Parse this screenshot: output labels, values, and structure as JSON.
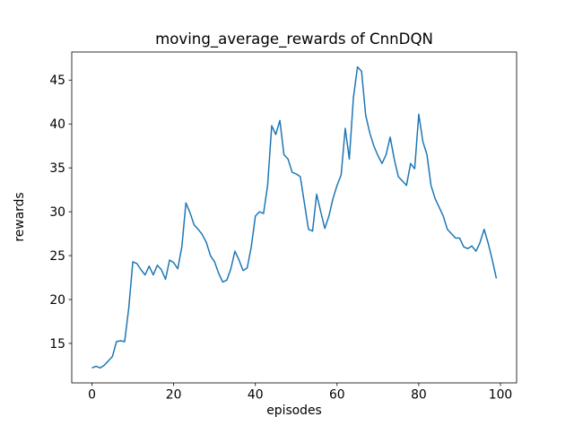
{
  "chart_data": {
    "type": "line",
    "title": "moving_average_rewards of CnnDQN",
    "xlabel": "episodes",
    "ylabel": "rewards",
    "line_color": "#1f77b4",
    "background_color": "#ffffff",
    "grid": false,
    "legend": "none",
    "xlim": [
      -4.95,
      103.95
    ],
    "ylim": [
      10.5,
      48.2
    ],
    "x_ticks": [
      0,
      20,
      40,
      60,
      80,
      100
    ],
    "y_ticks": [
      15,
      20,
      25,
      30,
      35,
      40,
      45
    ],
    "x": [
      0,
      1,
      2,
      3,
      4,
      5,
      6,
      7,
      8,
      9,
      10,
      11,
      12,
      13,
      14,
      15,
      16,
      17,
      18,
      19,
      20,
      21,
      22,
      23,
      24,
      25,
      26,
      27,
      28,
      29,
      30,
      31,
      32,
      33,
      34,
      35,
      36,
      37,
      38,
      39,
      40,
      41,
      42,
      43,
      44,
      45,
      46,
      47,
      48,
      49,
      50,
      51,
      52,
      53,
      54,
      55,
      56,
      57,
      58,
      59,
      60,
      61,
      62,
      63,
      64,
      65,
      66,
      67,
      68,
      69,
      70,
      71,
      72,
      73,
      74,
      75,
      76,
      77,
      78,
      79,
      80,
      81,
      82,
      83,
      84,
      85,
      86,
      87,
      88,
      89,
      90,
      91,
      92,
      93,
      94,
      95,
      96,
      97,
      98,
      99
    ],
    "values": [
      12.2,
      12.4,
      12.2,
      12.5,
      13.0,
      13.5,
      15.2,
      15.3,
      15.2,
      19.0,
      24.3,
      24.1,
      23.4,
      22.8,
      23.8,
      22.8,
      23.9,
      23.4,
      22.3,
      24.5,
      24.2,
      23.5,
      26.0,
      31.0,
      29.9,
      28.5,
      28.0,
      27.4,
      26.5,
      25.0,
      24.3,
      23.0,
      22.0,
      22.2,
      23.5,
      25.5,
      24.5,
      23.3,
      23.6,
      26.0,
      29.5,
      30.0,
      29.8,
      33.0,
      39.8,
      38.8,
      40.4,
      36.5,
      36.0,
      34.5,
      34.3,
      34.0,
      31.0,
      28.0,
      27.8,
      32.0,
      30.0,
      28.1,
      29.5,
      31.5,
      33.0,
      34.2,
      39.5,
      36.0,
      43.0,
      46.5,
      46.0,
      41.0,
      39.0,
      37.5,
      36.4,
      35.5,
      36.5,
      38.5,
      36.0,
      34.0,
      33.5,
      33.0,
      35.5,
      34.9,
      41.1,
      38.0,
      36.5,
      33.0,
      31.5,
      30.5,
      29.5,
      28.0,
      27.5,
      27.0,
      27.0,
      26.0,
      25.8,
      26.1,
      25.5,
      26.5,
      28.0,
      26.4,
      24.5,
      22.4
    ]
  }
}
